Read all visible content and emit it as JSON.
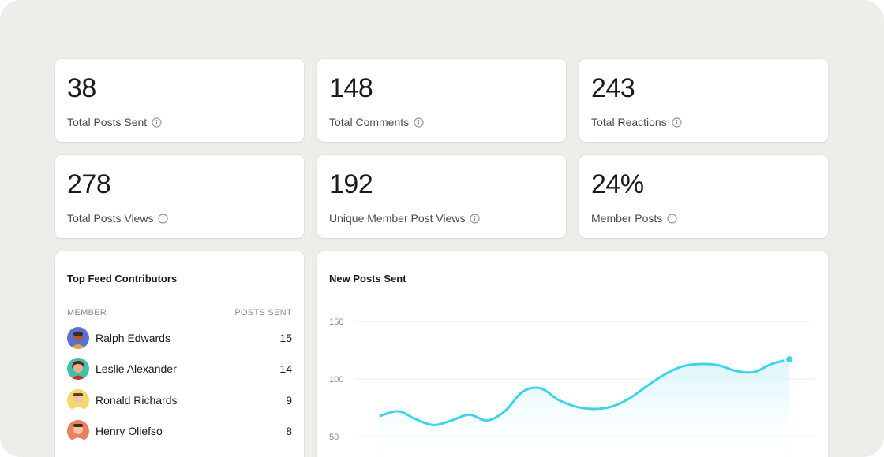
{
  "stats": [
    {
      "value": "38",
      "label": "Total Posts Sent"
    },
    {
      "value": "148",
      "label": "Total Comments"
    },
    {
      "value": "243",
      "label": "Total Reactions"
    },
    {
      "value": "278",
      "label": "Total Posts Views"
    },
    {
      "value": "192",
      "label": "Unique Member Post Views"
    },
    {
      "value": "24%",
      "label": "Member Posts"
    }
  ],
  "contributors": {
    "title": "Top Feed Contributors",
    "col_member": "MEMBER",
    "col_posts": "POSTS SENT",
    "rows": [
      {
        "name": "Ralph Edwards",
        "count": "15"
      },
      {
        "name": "Leslie Alexander",
        "count": "14"
      },
      {
        "name": "Ronald Richards",
        "count": "9"
      },
      {
        "name": "Henry Oliefso",
        "count": "8"
      }
    ]
  },
  "colors": {
    "background": "#edede9",
    "card": "#ffffff",
    "line": "#3fd3eb",
    "fill": "#e4f8fc"
  },
  "chart_data": {
    "type": "line",
    "title": "New Posts Sent",
    "xlabel": "",
    "ylabel": "",
    "ylim": [
      50,
      150
    ],
    "yticks": [
      "150",
      "100",
      "50"
    ],
    "grid": true,
    "legend": "none",
    "series": [
      {
        "values": [
          68,
          72,
          65,
          60,
          64,
          69,
          64,
          72,
          89,
          92,
          82,
          76,
          74,
          76,
          83,
          94,
          104,
          111,
          113,
          112,
          107,
          106,
          113,
          117
        ]
      }
    ]
  }
}
